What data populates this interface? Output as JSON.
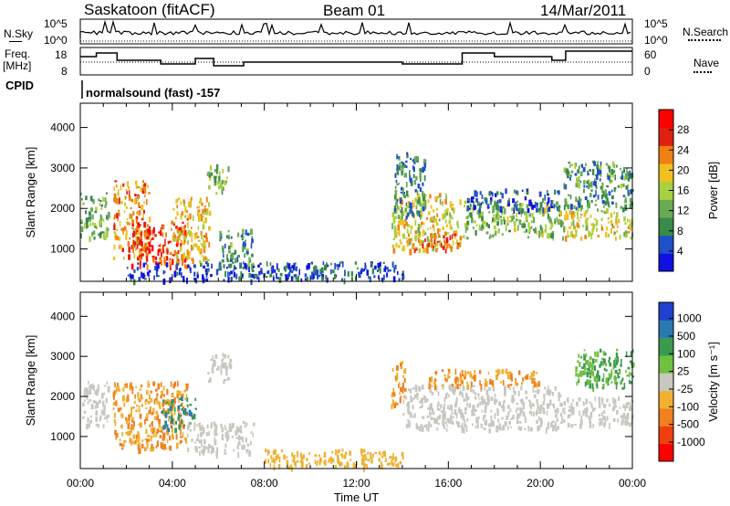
{
  "header": {
    "station": "Saskatoon (fitACF)",
    "beam": "Beam 01",
    "date": "14/Mar/2011"
  },
  "summary_panels": {
    "nsky_label": "N.Sky",
    "nsearch_label": "N.Search",
    "nsky_ticks": [
      "10^5",
      "10^0"
    ],
    "nsearch_ticks": [
      "10^5",
      "10^0"
    ],
    "freq_label_1": "Freq.",
    "freq_label_2": "[MHz]",
    "freq_ticks": [
      "18",
      "8"
    ],
    "nave_label": "Nave",
    "nave_ticks": [
      "60",
      "0"
    ],
    "cpid_label": "CPID",
    "cpid_value": "normalsound (fast) -157"
  },
  "colors": {
    "power": [
      "#1010e0",
      "#2050c8",
      "#3a8a4a",
      "#6aaa55",
      "#a8d040",
      "#f0c020",
      "#f08010",
      "#e02010",
      "#ff0000"
    ],
    "velocity": [
      "#ff0000",
      "#f04010",
      "#f08020",
      "#f0b030",
      "#c8c8c0",
      "#70c040",
      "#3a9a50",
      "#2a7ab0",
      "#2040d0"
    ]
  },
  "chart_data": [
    {
      "type": "heatmap",
      "name": "power",
      "xlabel": "",
      "ylabel": "Slant Range [km]",
      "ylim": [
        200,
        4600
      ],
      "yticks": [
        "1000",
        "2000",
        "3000",
        "4000"
      ],
      "colorbar_label": "Power [dB]",
      "colorbar_ticks": [
        "4",
        "8",
        "12",
        "16",
        "20",
        "24",
        "28"
      ],
      "colorbar_range": [
        0,
        32
      ],
      "regions": [
        {
          "t0": 0.0,
          "t1": 1.2,
          "r0": 1300,
          "r1": 2400,
          "v": 12
        },
        {
          "t0": 1.4,
          "t1": 3.0,
          "r0": 800,
          "r1": 2700,
          "v": 22
        },
        {
          "t0": 2.2,
          "t1": 4.6,
          "r0": 600,
          "r1": 1700,
          "v": 26
        },
        {
          "t0": 4.0,
          "t1": 5.6,
          "r0": 700,
          "r1": 2300,
          "v": 20
        },
        {
          "t0": 5.5,
          "t1": 6.5,
          "r0": 2400,
          "r1": 3100,
          "v": 14
        },
        {
          "t0": 6.0,
          "t1": 7.5,
          "r0": 600,
          "r1": 1500,
          "v": 10
        },
        {
          "t0": 2.0,
          "t1": 14.0,
          "r0": 250,
          "r1": 700,
          "v": 5
        },
        {
          "t0": 13.5,
          "t1": 16.5,
          "r0": 1000,
          "r1": 2400,
          "v": 18
        },
        {
          "t0": 13.6,
          "t1": 15.0,
          "r0": 1800,
          "r1": 3400,
          "v": 9
        },
        {
          "t0": 14.5,
          "t1": 16.5,
          "r0": 1000,
          "r1": 1400,
          "v": 26
        },
        {
          "t0": 16.6,
          "t1": 21.0,
          "r0": 1300,
          "r1": 2200,
          "v": 14
        },
        {
          "t0": 16.8,
          "t1": 20.8,
          "r0": 2000,
          "r1": 2500,
          "v": 6
        },
        {
          "t0": 21.0,
          "t1": 24.0,
          "r0": 1300,
          "r1": 2000,
          "v": 18
        },
        {
          "t0": 21.0,
          "t1": 24.0,
          "r0": 2000,
          "r1": 3200,
          "v": 10
        }
      ]
    },
    {
      "type": "heatmap",
      "name": "velocity",
      "xlabel": "Time UT",
      "ylabel": "Slant Range [km]",
      "ylim": [
        200,
        4600
      ],
      "yticks": [
        "1000",
        "2000",
        "3000",
        "4000"
      ],
      "xticks": [
        "00:00",
        "04:00",
        "08:00",
        "12:00",
        "16:00",
        "20:00",
        "00:00"
      ],
      "xlim": [
        0,
        24
      ],
      "colorbar_label": "Velocity [m s⁻¹]",
      "colorbar_ticks": [
        "1000",
        "500",
        "100",
        "25",
        "-25",
        "-100",
        "-500",
        "-1000"
      ],
      "regions": [
        {
          "t0": 0.0,
          "t1": 1.2,
          "r0": 1300,
          "r1": 2400,
          "v": 0
        },
        {
          "t0": 1.4,
          "t1": 4.6,
          "r0": 700,
          "r1": 2400,
          "v": -100
        },
        {
          "t0": 3.5,
          "t1": 5.0,
          "r0": 1200,
          "r1": 2000,
          "v": 500
        },
        {
          "t0": 4.6,
          "t1": 7.5,
          "r0": 600,
          "r1": 1400,
          "v": 0
        },
        {
          "t0": 5.5,
          "t1": 6.5,
          "r0": 2400,
          "r1": 3100,
          "v": 0
        },
        {
          "t0": 8.0,
          "t1": 14.0,
          "r0": 250,
          "r1": 700,
          "v": -50
        },
        {
          "t0": 13.5,
          "t1": 14.1,
          "r0": 1800,
          "r1": 2900,
          "v": -100
        },
        {
          "t0": 14.0,
          "t1": 21.0,
          "r0": 1200,
          "r1": 2300,
          "v": 0
        },
        {
          "t0": 15.0,
          "t1": 20.0,
          "r0": 2300,
          "r1": 2700,
          "v": -100
        },
        {
          "t0": 21.0,
          "t1": 24.0,
          "r0": 1300,
          "r1": 2000,
          "v": 0
        },
        {
          "t0": 21.5,
          "t1": 24.0,
          "r0": 2200,
          "r1": 3200,
          "v": 100
        }
      ]
    }
  ]
}
